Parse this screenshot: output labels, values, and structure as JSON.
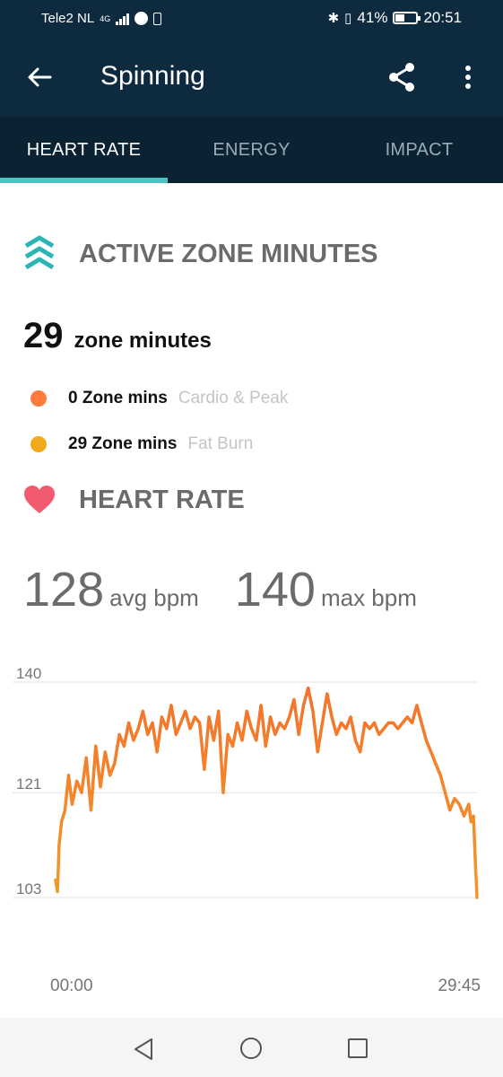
{
  "status_bar": {
    "carrier": "Tele2 NL",
    "network": "4G",
    "battery": "41%",
    "time": "20:51"
  },
  "app_bar": {
    "title": "Spinning",
    "icons": [
      "back-arrow-icon",
      "share-icon",
      "more-vert-icon"
    ]
  },
  "tabs": [
    {
      "label": "HEART RATE",
      "active": true
    },
    {
      "label": "ENERGY",
      "active": false
    },
    {
      "label": "IMPACT",
      "active": false
    }
  ],
  "azm": {
    "title": "ACTIVE ZONE MINUTES",
    "total": "29",
    "total_unit": "zone minutes",
    "zones": [
      {
        "value": "0 Zone mins",
        "label": "Cardio & Peak",
        "color": "#ff7a3d"
      },
      {
        "value": "29 Zone mins",
        "label": "Fat Burn",
        "color": "#f0ab1b"
      }
    ],
    "icon_color": "#2cb5b5"
  },
  "heart_rate": {
    "title": "HEART RATE",
    "avg": "128",
    "avg_unit": "avg bpm",
    "max": "140",
    "max_unit": "max bpm",
    "icon_color": "#f25a6f"
  },
  "chart_data": {
    "type": "line",
    "y_ticks": [
      "140",
      "121",
      "103"
    ],
    "ylim": [
      103,
      140
    ],
    "x_labels": [
      "00:00",
      "29:45"
    ],
    "xlim_seconds": [
      0,
      1785
    ],
    "grid": true,
    "color_top": "#f4722b",
    "color_bottom": "#f29a2a",
    "series": [
      {
        "x": [
          0,
          8,
          15,
          25,
          40,
          55,
          70,
          90,
          110,
          130,
          150,
          170,
          190,
          210,
          230,
          250,
          270,
          290,
          310,
          330,
          350,
          370,
          390,
          410,
          430,
          450,
          470,
          490,
          510,
          530,
          550,
          570,
          590,
          610,
          630,
          650,
          670,
          690,
          710,
          730,
          750,
          770,
          790,
          810,
          830,
          850,
          870,
          890,
          910,
          930,
          950,
          970,
          990,
          1010,
          1030,
          1050,
          1070,
          1090,
          1110,
          1130,
          1150,
          1170,
          1190,
          1210,
          1230,
          1250,
          1270,
          1290,
          1310,
          1330,
          1350,
          1370,
          1390,
          1410,
          1430,
          1450,
          1470,
          1490,
          1510,
          1530,
          1550,
          1570,
          1590,
          1610,
          1630,
          1650,
          1670,
          1690,
          1710,
          1730,
          1750,
          1760,
          1770,
          1778,
          1785
        ],
        "y": [
          106,
          104,
          112,
          116,
          118,
          124,
          119,
          123,
          121,
          127,
          118,
          129,
          122,
          128,
          124,
          126,
          131,
          129,
          133,
          130,
          132,
          135,
          131,
          133,
          128,
          134,
          132,
          136,
          131,
          133,
          135,
          132,
          134,
          133,
          125,
          134,
          130,
          135,
          121,
          131,
          129,
          133,
          130,
          135,
          132,
          130,
          136,
          129,
          134,
          131,
          133,
          132,
          134,
          137,
          131,
          136,
          139,
          135,
          128,
          133,
          138,
          134,
          131,
          133,
          132,
          134,
          130,
          128,
          133,
          132,
          133,
          131,
          132,
          133,
          133,
          132,
          133,
          134,
          133,
          136,
          133,
          130,
          128,
          126,
          124,
          121,
          118,
          120,
          119,
          117,
          119,
          116,
          117,
          109,
          103
        ]
      }
    ]
  },
  "nav_bar": {
    "icons": [
      "nav-back-icon",
      "nav-home-icon",
      "nav-recents-icon"
    ]
  }
}
